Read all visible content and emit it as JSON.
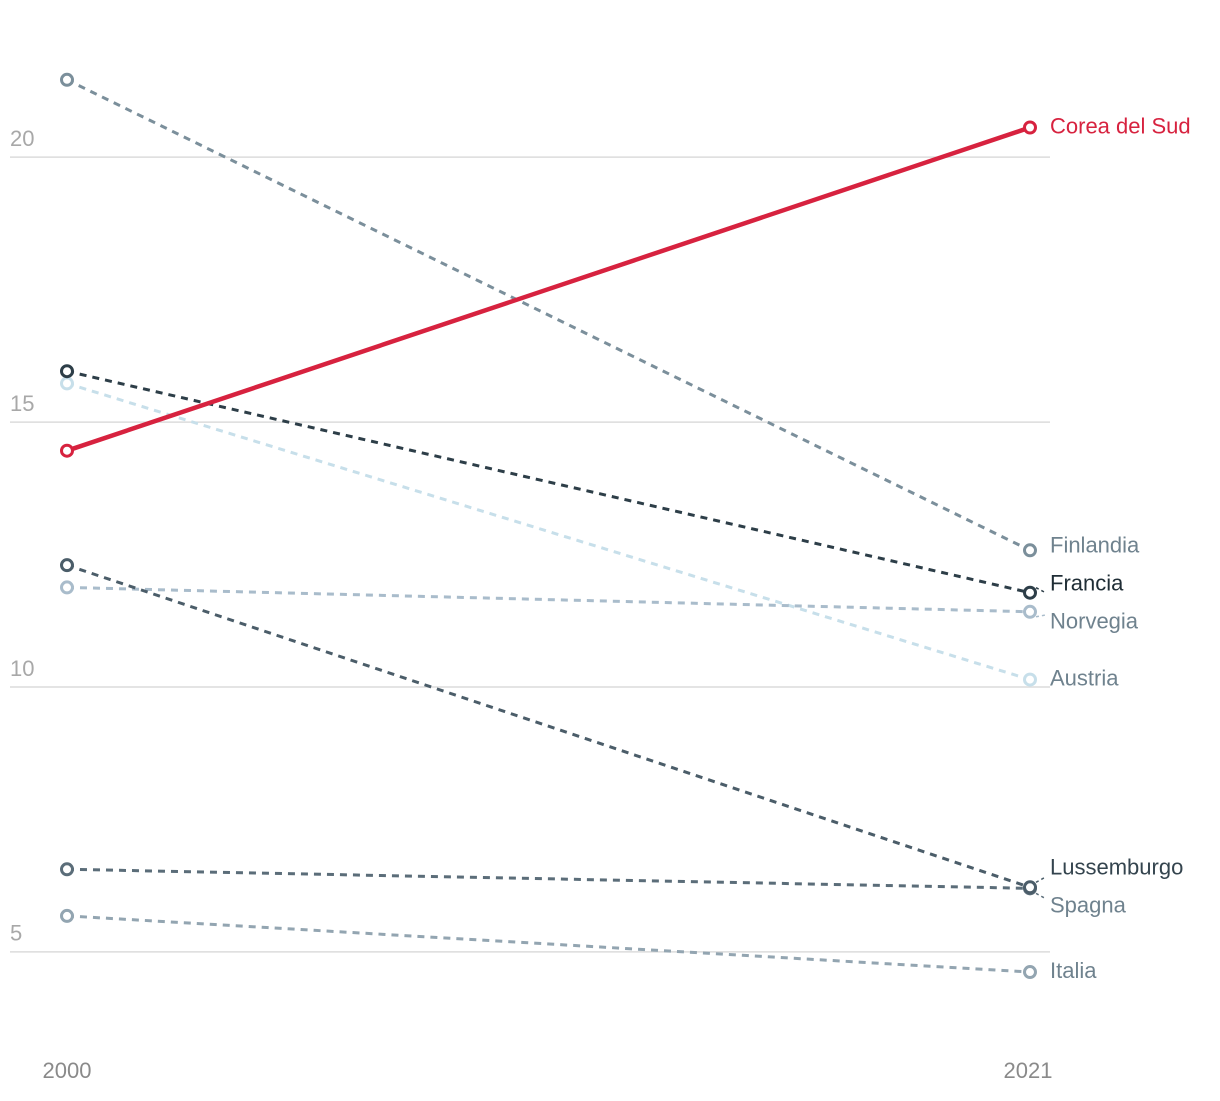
{
  "chart_data": {
    "type": "slope",
    "categories": [
      "2000",
      "2021"
    ],
    "ylim": [
      3.3,
      22.4
    ],
    "yticks": [
      5,
      10,
      15,
      20
    ],
    "grid": true,
    "series": [
      {
        "name": "Finlandia",
        "color": "#7b8f9b",
        "label_color": "#6f828e",
        "line_style": "dashed",
        "values": [
          21.46,
          12.58
        ]
      },
      {
        "name": "Austria",
        "color": "#c7dfea",
        "label_color": "#6f828e",
        "line_style": "dashed",
        "values": [
          15.73,
          10.14
        ]
      },
      {
        "name": "Norvegia",
        "color": "#a9bccb",
        "label_color": "#6f828e",
        "line_style": "dashed",
        "values": [
          11.88,
          11.42
        ]
      },
      {
        "name": "Italia",
        "color": "#93a5b1",
        "label_color": "#6f828e",
        "line_style": "dashed",
        "values": [
          5.68,
          4.62
        ]
      },
      {
        "name": "Spagna",
        "color": "#5b6d79",
        "label_color": "#6f828e",
        "line_style": "dashed",
        "values": [
          6.56,
          6.2
        ]
      },
      {
        "name": "Lussemburgo",
        "color": "#4b5d69",
        "label_color": "#34444e",
        "line_style": "dashed",
        "values": [
          12.3,
          6.22
        ]
      },
      {
        "name": "Francia",
        "color": "#2d3e48",
        "label_color": "#1f2d35",
        "line_style": "dashed",
        "values": [
          15.96,
          11.78
        ]
      },
      {
        "name": "Corea del Sud",
        "color": "#d7223f",
        "label_color": "#d7223f",
        "line_style": "solid",
        "values": [
          14.46,
          20.56
        ]
      }
    ]
  }
}
